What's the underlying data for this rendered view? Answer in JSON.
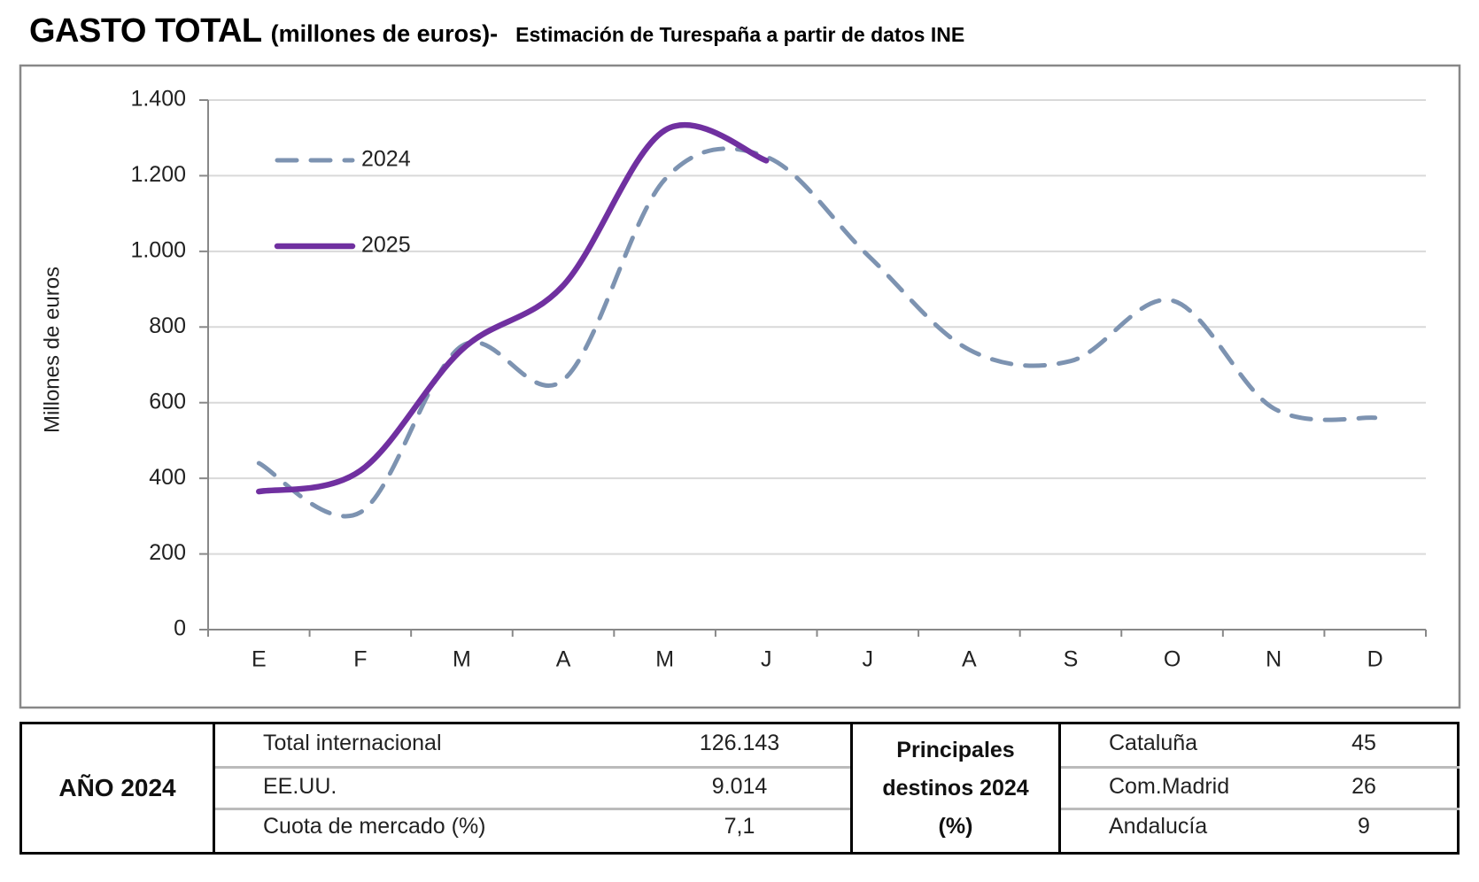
{
  "chart_data": {
    "type": "line",
    "title": "GASTO TOTAL",
    "title_unit": "(millones de euros)-",
    "subtitle": "Estimación de Turespaña a partir de datos INE",
    "y_label": "Millones de euros",
    "categories": [
      "E",
      "F",
      "M",
      "A",
      "M",
      "J",
      "J",
      "A",
      "S",
      "O",
      "N",
      "D"
    ],
    "series": [
      {
        "name": "2024",
        "color": "#7d93b1",
        "dash": true,
        "values": [
          440,
          310,
          750,
          660,
          1190,
          1250,
          990,
          740,
          710,
          870,
          585,
          560
        ]
      },
      {
        "name": "2025",
        "color": "#7030a0",
        "dash": false,
        "values": [
          365,
          420,
          740,
          910,
          1320,
          1240,
          null,
          null,
          null,
          null,
          null,
          null
        ]
      }
    ],
    "ylim": [
      0,
      1400
    ],
    "yticks": [
      0,
      200,
      400,
      600,
      800,
      {
        "value": 1000,
        "label": "1.000"
      },
      {
        "value": 1200,
        "label": "1.200"
      },
      {
        "value": 1400,
        "label": "1.400"
      }
    ],
    "grid": true,
    "legend": "upper left"
  },
  "table": {
    "year_label": "AÑO 2024",
    "rows": [
      [
        "Total internacional",
        "126.143"
      ],
      [
        "EE.UU.",
        "9.014"
      ],
      [
        "Cuota de mercado (%)",
        "7,1"
      ]
    ],
    "destinations_title": [
      "Principales",
      "destinos 2024",
      "(%)"
    ],
    "destinations": [
      [
        "Cataluña",
        45
      ],
      [
        "Com.Madrid",
        26
      ],
      [
        "Andalucía",
        9
      ]
    ]
  }
}
